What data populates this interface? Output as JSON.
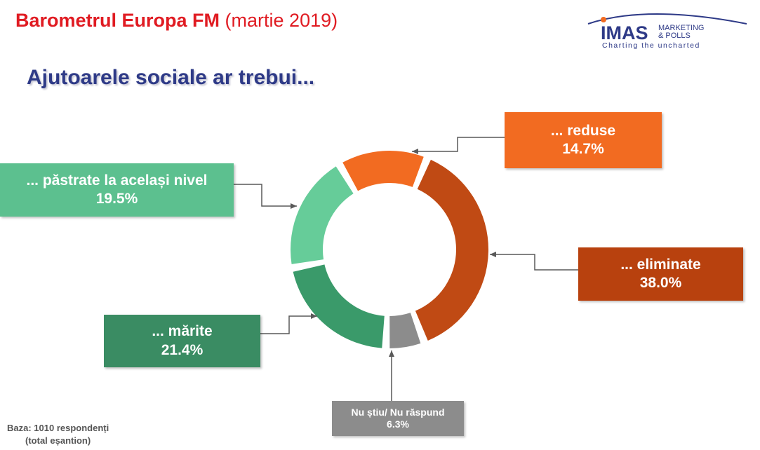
{
  "header": {
    "title_bold": "Barometrul Europa FM",
    "title_rest": "(martie 2019)"
  },
  "logo": {
    "brand": "IMAS",
    "line1": "MARKETING",
    "line2": "& POLLS",
    "tagline": "Charting the uncharted"
  },
  "subtitle": "Ajutoarele sociale ar trebui...",
  "footnote": {
    "line1": "Baza: 1010 respondenți",
    "line2": "(total eșantion)"
  },
  "chart_data": {
    "type": "pie",
    "title": "Ajutoarele sociale ar trebui...",
    "unit": "%",
    "categories": [
      "... reduse",
      "... eliminate",
      "Nu știu/ Nu răspund",
      "... mărite",
      "... păstrate la același nivel"
    ],
    "values": [
      14.7,
      38.0,
      6.3,
      21.4,
      19.5
    ],
    "labels": [
      "14.7%",
      "38.0%",
      "6.3%",
      "21.4%",
      "19.5%"
    ],
    "colors": [
      "#f26b21",
      "#c04a14",
      "#8c8c8c",
      "#3a9a6a",
      "#66cc99"
    ],
    "box_colors": [
      "#f26b21",
      "#b8410e",
      "#8c8c8c",
      "#3a8c63",
      "#5cc08f"
    ]
  }
}
